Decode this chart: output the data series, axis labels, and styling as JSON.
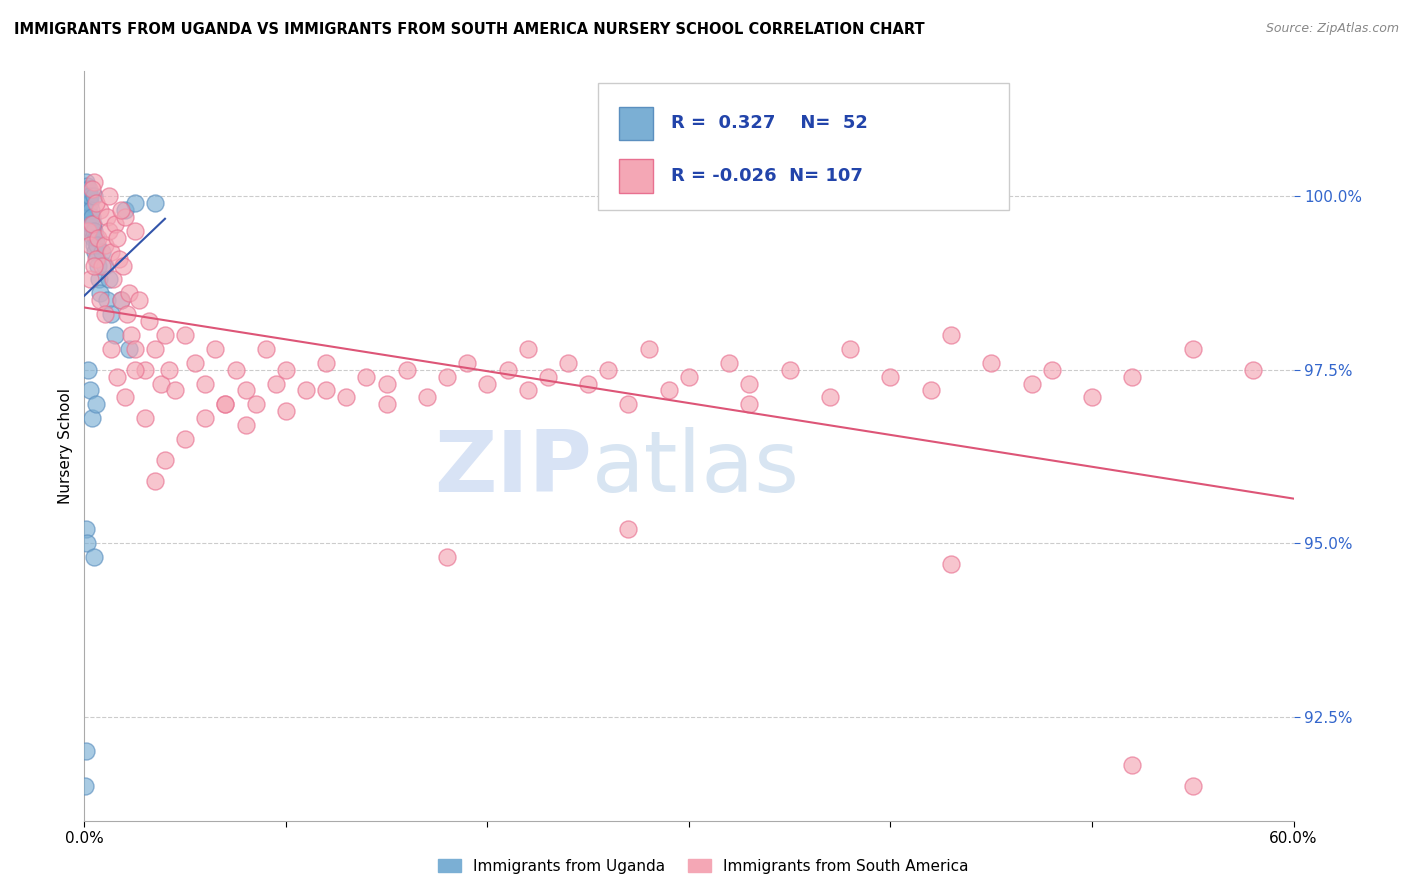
{
  "title": "IMMIGRANTS FROM UGANDA VS IMMIGRANTS FROM SOUTH AMERICA NURSERY SCHOOL CORRELATION CHART",
  "source": "Source: ZipAtlas.com",
  "ylabel": "Nursery School",
  "xlim": [
    0.0,
    60.0
  ],
  "ylim": [
    91.0,
    101.8
  ],
  "yticks": [
    92.5,
    95.0,
    97.5,
    100.0
  ],
  "ytick_labels": [
    "92.5%",
    "95.0%",
    "97.5%",
    "100.0%"
  ],
  "xticks": [
    0.0,
    10.0,
    20.0,
    30.0,
    40.0,
    50.0,
    60.0
  ],
  "blue_R": 0.327,
  "blue_N": 52,
  "pink_R": -0.026,
  "pink_N": 107,
  "blue_color": "#7BAFD4",
  "pink_color": "#F4A7B5",
  "blue_edge_color": "#5B8FBF",
  "pink_edge_color": "#E87090",
  "blue_line_color": "#3355AA",
  "pink_line_color": "#DD5577",
  "blue_x": [
    0.05,
    0.07,
    0.08,
    0.1,
    0.1,
    0.12,
    0.13,
    0.15,
    0.15,
    0.18,
    0.2,
    0.22,
    0.25,
    0.25,
    0.28,
    0.3,
    0.3,
    0.35,
    0.38,
    0.4,
    0.42,
    0.45,
    0.48,
    0.5,
    0.5,
    0.55,
    0.6,
    0.62,
    0.65,
    0.7,
    0.75,
    0.8,
    0.9,
    1.0,
    1.1,
    1.2,
    1.3,
    1.5,
    1.8,
    2.0,
    2.2,
    2.5,
    0.05,
    0.08,
    0.1,
    0.15,
    0.2,
    0.3,
    0.4,
    0.6,
    0.5,
    3.5
  ],
  "blue_y": [
    100.0,
    100.1,
    100.05,
    100.2,
    99.9,
    100.0,
    100.1,
    100.15,
    99.95,
    100.0,
    99.8,
    100.0,
    99.7,
    100.1,
    99.9,
    99.6,
    100.0,
    99.8,
    99.5,
    99.7,
    99.4,
    99.6,
    99.3,
    99.5,
    100.0,
    99.2,
    99.4,
    99.1,
    99.3,
    99.0,
    98.8,
    98.6,
    99.2,
    99.0,
    98.5,
    98.8,
    98.3,
    98.0,
    98.5,
    99.8,
    97.8,
    99.9,
    91.5,
    92.0,
    95.2,
    95.0,
    97.5,
    97.2,
    96.8,
    97.0,
    94.8,
    99.9
  ],
  "pink_x": [
    0.2,
    0.3,
    0.4,
    0.5,
    0.6,
    0.7,
    0.8,
    0.9,
    1.0,
    1.1,
    1.2,
    1.3,
    1.4,
    1.5,
    1.6,
    1.7,
    1.8,
    1.9,
    2.0,
    2.1,
    2.2,
    2.3,
    2.5,
    2.7,
    3.0,
    3.2,
    3.5,
    3.8,
    4.0,
    4.2,
    4.5,
    5.0,
    5.5,
    6.0,
    6.5,
    7.0,
    7.5,
    8.0,
    8.5,
    9.0,
    9.5,
    10.0,
    11.0,
    12.0,
    13.0,
    14.0,
    15.0,
    16.0,
    17.0,
    18.0,
    19.0,
    20.0,
    21.0,
    22.0,
    23.0,
    24.0,
    25.0,
    26.0,
    27.0,
    28.0,
    29.0,
    30.0,
    32.0,
    33.0,
    35.0,
    37.0,
    38.0,
    40.0,
    42.0,
    43.0,
    45.0,
    47.0,
    48.0,
    50.0,
    52.0,
    55.0,
    58.0,
    0.3,
    0.5,
    0.8,
    1.0,
    1.3,
    1.6,
    2.0,
    2.5,
    3.0,
    3.5,
    4.0,
    5.0,
    6.0,
    7.0,
    8.0,
    10.0,
    12.0,
    15.0,
    18.0,
    22.0,
    27.0,
    33.0,
    43.0,
    52.0,
    55.0,
    0.4,
    0.6,
    1.2,
    1.8,
    2.5
  ],
  "pink_y": [
    99.5,
    99.3,
    99.6,
    100.2,
    99.1,
    99.4,
    99.8,
    99.0,
    99.3,
    99.7,
    99.5,
    99.2,
    98.8,
    99.6,
    99.4,
    99.1,
    98.5,
    99.0,
    99.7,
    98.3,
    98.6,
    98.0,
    97.8,
    98.5,
    97.5,
    98.2,
    97.8,
    97.3,
    98.0,
    97.5,
    97.2,
    98.0,
    97.6,
    97.3,
    97.8,
    97.0,
    97.5,
    97.2,
    97.0,
    97.8,
    97.3,
    97.5,
    97.2,
    97.6,
    97.1,
    97.4,
    97.3,
    97.5,
    97.1,
    97.4,
    97.6,
    97.3,
    97.5,
    97.2,
    97.4,
    97.6,
    97.3,
    97.5,
    97.0,
    97.8,
    97.2,
    97.4,
    97.6,
    97.3,
    97.5,
    97.1,
    97.8,
    97.4,
    97.2,
    98.0,
    97.6,
    97.3,
    97.5,
    97.1,
    97.4,
    97.8,
    97.5,
    98.8,
    99.0,
    98.5,
    98.3,
    97.8,
    97.4,
    97.1,
    97.5,
    96.8,
    95.9,
    96.2,
    96.5,
    96.8,
    97.0,
    96.7,
    96.9,
    97.2,
    97.0,
    94.8,
    97.8,
    95.2,
    97.0,
    94.7,
    91.8,
    91.5,
    100.1,
    99.9,
    100.0,
    99.8,
    99.5
  ]
}
